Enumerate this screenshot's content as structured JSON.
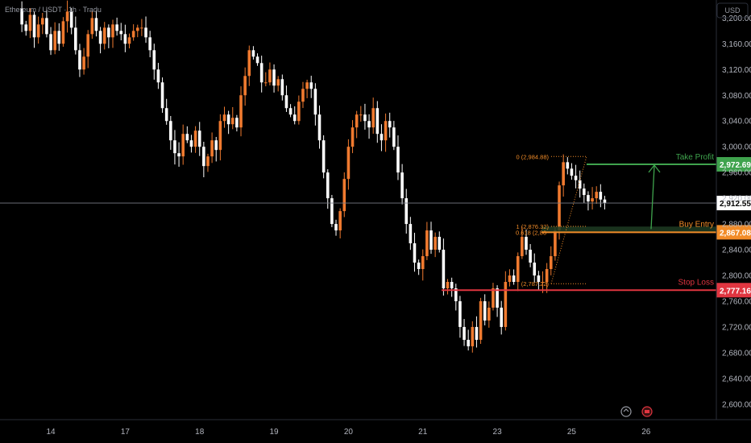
{
  "header": {
    "title": "Ethereum / USDT · 1h · Tradu"
  },
  "price_axis": {
    "currency": "USD"
  },
  "colors": {
    "up": "#f07a2f",
    "down": "#ffffff",
    "take_profit": "#3fa34d",
    "buy_entry": "#f28c28",
    "stop_loss": "#e03540",
    "current": "#ffffff"
  },
  "chart_data": {
    "type": "candlestick",
    "ylim": [
      2576,
      3228
    ],
    "yticks": [
      "3,200.00",
      "3,160.00",
      "3,120.00",
      "3,080.00",
      "3,040.00",
      "3,000.00",
      "2,960.00",
      "2,920.00",
      "2,880.00",
      "2,840.00",
      "2,800.00",
      "2,760.00",
      "2,720.00",
      "2,680.00",
      "2,640.00",
      "2,600.00"
    ],
    "ytick_values": [
      3200,
      3160,
      3120,
      3080,
      3040,
      3000,
      2960,
      2920,
      2880,
      2840,
      2800,
      2760,
      2720,
      2680,
      2640,
      2600
    ],
    "xticks": [
      "14",
      "17",
      "18",
      "19",
      "20",
      "21",
      "23",
      "25",
      "26"
    ],
    "xtick_index": [
      8,
      26,
      44,
      62,
      80,
      98,
      116,
      134,
      152
    ],
    "candle_count": 142,
    "ohlc_hint": "1h candles Nov 14–25",
    "path": [
      3215,
      3190,
      3180,
      3205,
      3170,
      3190,
      3200,
      3175,
      3150,
      3180,
      3160,
      3195,
      3210,
      3185,
      3150,
      3120,
      3140,
      3175,
      3200,
      3180,
      3160,
      3185,
      3170,
      3190,
      3180,
      3175,
      3160,
      3170,
      3180,
      3185,
      3185,
      3170,
      3150,
      3120,
      3100,
      3060,
      3040,
      3010,
      2990,
      2985,
      3020,
      3010,
      3000,
      3025,
      3000,
      2970,
      2985,
      3010,
      2995,
      3040,
      3050,
      3035,
      3045,
      3030,
      3080,
      3110,
      3150,
      3140,
      3130,
      3100,
      3100,
      3120,
      3095,
      3105,
      3080,
      3060,
      3050,
      3040,
      3070,
      3090,
      3100,
      3090,
      3050,
      3010,
      2960,
      2920,
      2880,
      2870,
      2900,
      2950,
      3000,
      3030,
      3050,
      3050,
      3040,
      3030,
      3060,
      3020,
      3010,
      3040,
      3030,
      3000,
      2960,
      2920,
      2880,
      2850,
      2820,
      2810,
      2830,
      2870,
      2840,
      2860,
      2840,
      2780,
      2790,
      2780,
      2760,
      2720,
      2700,
      2690,
      2720,
      2700,
      2760,
      2730,
      2750,
      2780,
      2750,
      2720,
      2790,
      2800,
      2790,
      2830,
      2860,
      2840,
      2820,
      2800,
      2790,
      2790,
      2810,
      2830,
      2870,
      2940,
      2976,
      2966,
      2955,
      2948,
      2935,
      2925,
      2915,
      2920,
      2930,
      2918,
      2912
    ]
  },
  "levels": {
    "take_profit": {
      "label": "Take Profit",
      "value": "2,972.69"
    },
    "buy_entry": {
      "label": "Buy Entry",
      "value": "2,867.08"
    },
    "stop_loss": {
      "label": "Stop Loss",
      "value": "2,777.16"
    },
    "current": {
      "value": "2,912.55"
    }
  },
  "fib": {
    "f0": "0 (2,984.88)",
    "f1": "1 (2,876.32)",
    "f0618": "0.618 (2,86",
    "low": "(2,787.22)"
  }
}
